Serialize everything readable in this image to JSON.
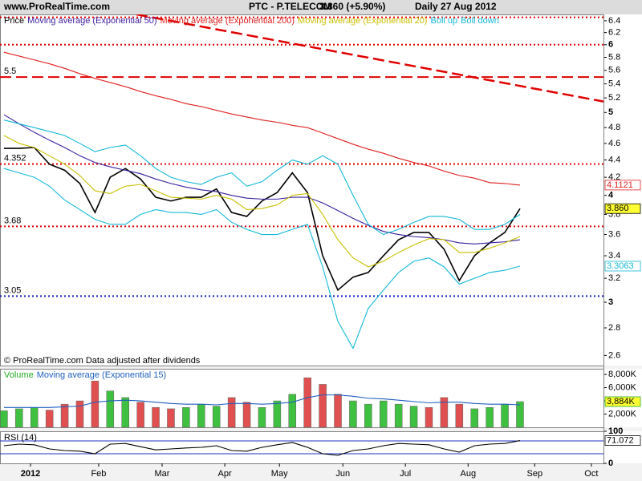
{
  "chart_data": [
    {
      "type": "line",
      "source": "www.ProRealTime.com",
      "title": "PTC - P.TELECOM",
      "subtitle": "3.860 (+5.90%)",
      "period": "Daily  27 Aug 2012",
      "note": "© ProRealTime.com  Data adjusted after dividends",
      "log": true,
      "xlim": [
        -0.26,
        39.5
      ],
      "ylim": [
        2.53,
        6.51
      ],
      "yticks": [
        2.6,
        2.8,
        3,
        3.2,
        3.4,
        3.6,
        3.8,
        4,
        4.2,
        4.4,
        4.6,
        4.8,
        5,
        5.2,
        5.4,
        5.6,
        5.8,
        6,
        6.2,
        6.4
      ],
      "x": [
        0,
        1,
        2,
        3,
        4,
        5,
        6,
        7,
        8,
        9,
        10,
        11,
        12,
        13,
        14,
        15,
        16,
        17,
        18,
        19,
        20,
        21,
        22,
        23,
        24,
        25,
        26,
        27,
        28,
        29,
        30,
        31,
        32,
        33,
        34
      ],
      "series": [
        {
          "name": "Price",
          "color": "#000000",
          "last_label": "3.860",
          "label_bg": "#ffff33",
          "values": [
            4.54,
            4.54,
            4.55,
            4.35,
            4.28,
            4.13,
            3.82,
            4.2,
            4.3,
            4.18,
            3.98,
            3.94,
            3.98,
            3.98,
            4.07,
            3.82,
            3.78,
            3.94,
            4.03,
            4.25,
            4.03,
            3.4,
            3.1,
            3.21,
            3.25,
            3.4,
            3.55,
            3.62,
            3.62,
            3.46,
            3.18,
            3.4,
            3.52,
            3.62,
            3.86
          ]
        },
        {
          "name": "Moving average (Exponential 50)",
          "color": "#3a1ea0",
          "values": [
            4.97,
            4.85,
            4.74,
            4.64,
            4.55,
            4.45,
            4.37,
            4.32,
            4.28,
            4.24,
            4.18,
            4.13,
            4.09,
            4.06,
            4.04,
            4.0,
            3.97,
            3.96,
            3.96,
            3.98,
            3.98,
            3.92,
            3.84,
            3.76,
            3.69,
            3.63,
            3.6,
            3.58,
            3.57,
            3.55,
            3.52,
            3.51,
            3.52,
            3.53,
            3.55
          ]
        },
        {
          "name": "Moving average (Exponential 200)",
          "color": "#e02020",
          "last_label": "4.1121",
          "label_bg": "#ffffff",
          "values": [
            5.88,
            5.82,
            5.76,
            5.7,
            5.63,
            5.55,
            5.48,
            5.42,
            5.36,
            5.29,
            5.23,
            5.18,
            5.12,
            5.08,
            5.03,
            4.98,
            4.94,
            4.9,
            4.87,
            4.83,
            4.8,
            4.73,
            4.66,
            4.59,
            4.53,
            4.48,
            4.42,
            4.37,
            4.33,
            4.27,
            4.22,
            4.19,
            4.14,
            4.13,
            4.1121
          ]
        },
        {
          "name": "Moving average (Exponential 20)",
          "color": "#c8c000",
          "values": [
            4.7,
            4.6,
            4.55,
            4.45,
            4.35,
            4.22,
            4.05,
            4.02,
            4.1,
            4.12,
            4.05,
            3.98,
            3.97,
            3.96,
            4.0,
            3.96,
            3.85,
            3.86,
            3.9,
            4.0,
            4.02,
            3.8,
            3.55,
            3.38,
            3.3,
            3.35,
            3.43,
            3.5,
            3.56,
            3.55,
            3.43,
            3.43,
            3.47,
            3.52,
            3.58
          ]
        },
        {
          "name": "Boll up",
          "color": "#12b8d8",
          "values": [
            4.9,
            4.85,
            4.8,
            4.75,
            4.7,
            4.6,
            4.5,
            4.55,
            4.58,
            4.45,
            4.3,
            4.2,
            4.15,
            4.12,
            4.2,
            4.25,
            4.1,
            4.15,
            4.28,
            4.4,
            4.35,
            4.45,
            4.35,
            4.0,
            3.7,
            3.6,
            3.65,
            3.72,
            3.78,
            3.78,
            3.75,
            3.65,
            3.65,
            3.7,
            3.8
          ]
        },
        {
          "name": "Boll down",
          "color": "#12b8d8",
          "last_label": "3.3063",
          "label_bg": "#ffffff",
          "values": [
            4.3,
            4.25,
            4.2,
            4.1,
            3.95,
            3.85,
            3.75,
            3.7,
            3.7,
            3.8,
            3.85,
            3.82,
            3.82,
            3.8,
            3.85,
            3.72,
            3.65,
            3.6,
            3.6,
            3.65,
            3.7,
            3.3,
            2.85,
            2.65,
            2.95,
            3.1,
            3.25,
            3.35,
            3.38,
            3.3,
            3.15,
            3.2,
            3.25,
            3.27,
            3.3063
          ]
        }
      ],
      "hlines": [
        {
          "value": 6.46,
          "color": "#e00000",
          "dash": "2,3",
          "show_label": false
        },
        {
          "value": 6,
          "color": "#e00000",
          "dash": "2,3",
          "show_label": false
        },
        {
          "value": 5.5,
          "color": "#e00000",
          "dash": "14,6",
          "show_label": true
        },
        {
          "value": 4.352,
          "color": "#e00000",
          "dash": "2,3",
          "show_label": true
        },
        {
          "value": 3.68,
          "color": "#e00000",
          "dash": "2,3",
          "show_label": true
        },
        {
          "value": 3.05,
          "color": "#1020c0",
          "dash": "2,3",
          "show_label": true
        }
      ],
      "trendline": {
        "from": [
          8.73,
          6.51
        ],
        "to": [
          39.5,
          5.15
        ],
        "color": "#e00000",
        "dash": "14,6"
      }
    },
    {
      "type": "bar",
      "log": false,
      "xlim": [
        -0.26,
        39.5
      ],
      "ylim": [
        0,
        8860000
      ],
      "yticks": [
        {
          "value": 2000000,
          "label": "2,000K"
        },
        {
          "value": 4000000,
          "label": "4,000K"
        },
        {
          "value": 6000000,
          "label": "6,000K"
        },
        {
          "value": 8000000,
          "label": "8,000K"
        }
      ],
      "x": [
        0,
        1,
        2,
        3,
        4,
        5,
        6,
        7,
        8,
        9,
        10,
        11,
        12,
        13,
        14,
        15,
        16,
        17,
        18,
        19,
        20,
        21,
        22,
        23,
        24,
        25,
        26,
        27,
        28,
        29,
        30,
        31,
        32,
        33,
        34
      ],
      "series": [
        {
          "name": "Volume",
          "color": "#22aa22",
          "last_label": "3,884K",
          "label_bg": "#ffff33",
          "colors": [
            "#40c040",
            "#40c040",
            "#40c040",
            "#e05050",
            "#e05050",
            "#e05050",
            "#e05050",
            "#40c040",
            "#40c040",
            "#e05050",
            "#e05050",
            "#e05050",
            "#40c040",
            "#40c040",
            "#40c040",
            "#e05050",
            "#e05050",
            "#40c040",
            "#40c040",
            "#40c040",
            "#e05050",
            "#e05050",
            "#e05050",
            "#40c040",
            "#40c040",
            "#40c040",
            "#40c040",
            "#40c040",
            "#e05050",
            "#e05050",
            "#e05050",
            "#40c040",
            "#40c040",
            "#40c040",
            "#40c040"
          ],
          "values": [
            2500000,
            2800000,
            3000000,
            2600000,
            3500000,
            4000000,
            7000000,
            5500000,
            4500000,
            3800000,
            3000000,
            2800000,
            3000000,
            3500000,
            3200000,
            4500000,
            3800000,
            3000000,
            4000000,
            5000000,
            7500000,
            6500000,
            5000000,
            4000000,
            3500000,
            4000000,
            3500000,
            3200000,
            3000000,
            4500000,
            3500000,
            2800000,
            3000000,
            3500000,
            3884000
          ]
        },
        {
          "name": "Moving average (Exponential 15)",
          "color": "#1f5fbf",
          "values": [
            3000000,
            3000000,
            3000000,
            3000000,
            3100000,
            3200000,
            3800000,
            4000000,
            4100000,
            4000000,
            3800000,
            3600000,
            3500000,
            3500000,
            3400000,
            3600000,
            3600000,
            3500000,
            3600000,
            3800000,
            4500000,
            4900000,
            4900000,
            4700000,
            4400000,
            4300000,
            4100000,
            3900000,
            3700000,
            3800000,
            3800000,
            3600000,
            3500000,
            3500000,
            3400000
          ]
        }
      ]
    },
    {
      "type": "line",
      "log": false,
      "xlim": [
        -0.26,
        39.5
      ],
      "ylim": [
        0,
        100
      ],
      "yticks": [
        0,
        100
      ],
      "levels": [
        30,
        70
      ],
      "level_color": "#2030c0",
      "x": [
        0,
        1,
        2,
        3,
        4,
        5,
        6,
        7,
        8,
        9,
        10,
        11,
        12,
        13,
        14,
        15,
        16,
        17,
        18,
        19,
        20,
        21,
        22,
        23,
        24,
        25,
        26,
        27,
        28,
        29,
        30,
        31,
        32,
        33,
        34
      ],
      "xticks": [
        {
          "value": 1.75,
          "label": "2012"
        },
        {
          "value": 6.24,
          "label": "Feb"
        },
        {
          "value": 10.42,
          "label": "Mar"
        },
        {
          "value": 14.55,
          "label": "Apr"
        },
        {
          "value": 18.15,
          "label": "May"
        },
        {
          "value": 22.33,
          "label": "Jun"
        },
        {
          "value": 26.45,
          "label": "Jul"
        },
        {
          "value": 30.58,
          "label": "Aug"
        },
        {
          "value": 34.97,
          "label": "Sep"
        },
        {
          "value": 38.7,
          "label": "Oct"
        }
      ],
      "series": [
        {
          "name": "RSI (14)",
          "color": "#000000",
          "last_label": "71.072",
          "label_bg": "#ffffff",
          "values": [
            55,
            60,
            58,
            45,
            40,
            38,
            30,
            60,
            62,
            52,
            42,
            45,
            48,
            50,
            55,
            40,
            38,
            50,
            58,
            65,
            50,
            30,
            25,
            40,
            45,
            55,
            62,
            60,
            58,
            45,
            35,
            55,
            60,
            62,
            71.072
          ]
        }
      ]
    }
  ]
}
